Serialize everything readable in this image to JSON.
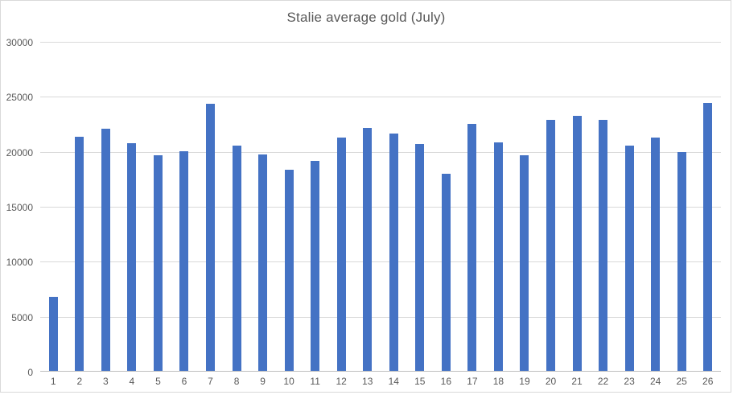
{
  "chart_data": {
    "type": "bar",
    "title": "Stalie average gold (July)",
    "categories": [
      "1",
      "2",
      "3",
      "4",
      "5",
      "6",
      "7",
      "8",
      "9",
      "10",
      "11",
      "12",
      "13",
      "14",
      "15",
      "16",
      "17",
      "18",
      "19",
      "20",
      "21",
      "22",
      "23",
      "24",
      "25",
      "26"
    ],
    "values": [
      6700,
      21300,
      22000,
      20700,
      19600,
      20000,
      24300,
      20500,
      19700,
      18300,
      19100,
      21200,
      22100,
      21600,
      20600,
      17900,
      22500,
      20800,
      19600,
      22800,
      23200,
      22800,
      20500,
      21200,
      19900,
      24400
    ],
    "xlabel": "",
    "ylabel": "",
    "ylim": [
      0,
      30000
    ],
    "ytick_interval": 5000,
    "ytick_labels": [
      "0",
      "5000",
      "10000",
      "15000",
      "20000",
      "25000",
      "30000"
    ],
    "grid": true,
    "legend_visible": false,
    "colors": {
      "bar": "#4472c4",
      "gridline": "#d9d9d9",
      "axis_line": "#bfbfbf",
      "tick_label": "#595959",
      "title": "#595959",
      "frame_border": "#d9d9d9",
      "background": "#ffffff"
    }
  }
}
